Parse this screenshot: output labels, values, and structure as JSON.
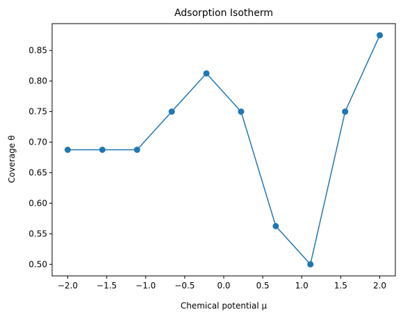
{
  "chart_data": {
    "type": "line",
    "title": "Adsorption Isotherm",
    "xlabel": "Chemical potential μ",
    "ylabel": "Coverage θ",
    "xlim": [
      -2.2,
      2.2
    ],
    "ylim": [
      0.481,
      0.894
    ],
    "grid": false,
    "x_ticks": [
      -2.0,
      -1.5,
      -1.0,
      -0.5,
      0.0,
      0.5,
      1.0,
      1.5,
      2.0
    ],
    "x_tick_labels": [
      "−2.0",
      "−1.5",
      "−1.0",
      "−0.5",
      "0.0",
      "0.5",
      "1.0",
      "1.5",
      "2.0"
    ],
    "y_ticks": [
      0.5,
      0.55,
      0.6,
      0.65,
      0.7,
      0.75,
      0.8,
      0.85
    ],
    "y_tick_labels": [
      "0.50",
      "0.55",
      "0.60",
      "0.65",
      "0.70",
      "0.75",
      "0.80",
      "0.85"
    ],
    "series": [
      {
        "color": "#1f77b4",
        "marker": "circle",
        "x": [
          -2.0,
          -1.556,
          -1.111,
          -0.667,
          -0.222,
          0.222,
          0.667,
          1.111,
          1.556,
          2.0
        ],
        "y": [
          0.6875,
          0.6875,
          0.6875,
          0.75,
          0.8125,
          0.75,
          0.5625,
          0.5,
          0.75,
          0.875
        ]
      }
    ]
  }
}
